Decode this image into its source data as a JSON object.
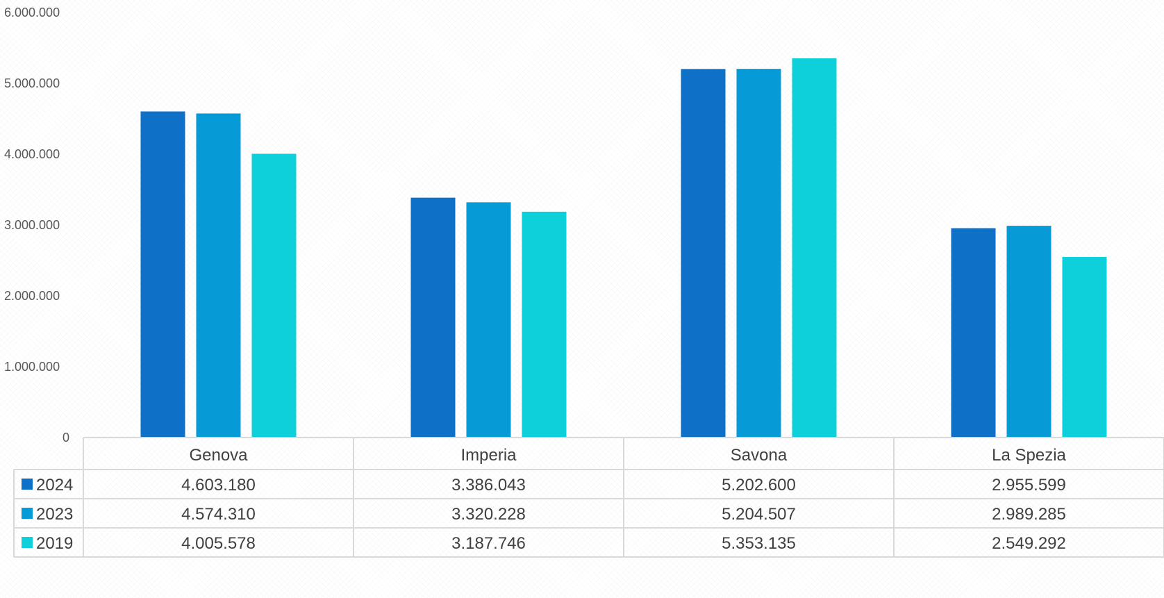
{
  "chart_data": {
    "type": "bar",
    "categories": [
      "Genova",
      "Imperia",
      "Savona",
      "La Spezia"
    ],
    "series": [
      {
        "name": "2024",
        "color": "#0e70c6",
        "values": [
          4603180,
          3386043,
          5202600,
          2955599
        ],
        "labels": [
          "4.603.180",
          "3.386.043",
          "5.202.600",
          "2.955.599"
        ]
      },
      {
        "name": "2023",
        "color": "#069ad6",
        "values": [
          4574310,
          3320228,
          5204507,
          2989285
        ],
        "labels": [
          "4.574.310",
          "3.320.228",
          "5.204.507",
          "2.989.285"
        ]
      },
      {
        "name": "2019",
        "color": "#0dd0db",
        "values": [
          4005578,
          3187746,
          5353135,
          2549292
        ],
        "labels": [
          "4.005.578",
          "3.187.746",
          "5.353.135",
          "2.549.292"
        ]
      }
    ],
    "ylim": [
      0,
      6000000
    ],
    "yticks": [
      0,
      1000000,
      2000000,
      3000000,
      4000000,
      5000000,
      6000000
    ],
    "ytick_labels": [
      "0",
      "1.000.000",
      "2.000.000",
      "3.000.000",
      "4.000.000",
      "5.000.000",
      "6.000.000"
    ],
    "grid": false,
    "legend": "data-table"
  }
}
